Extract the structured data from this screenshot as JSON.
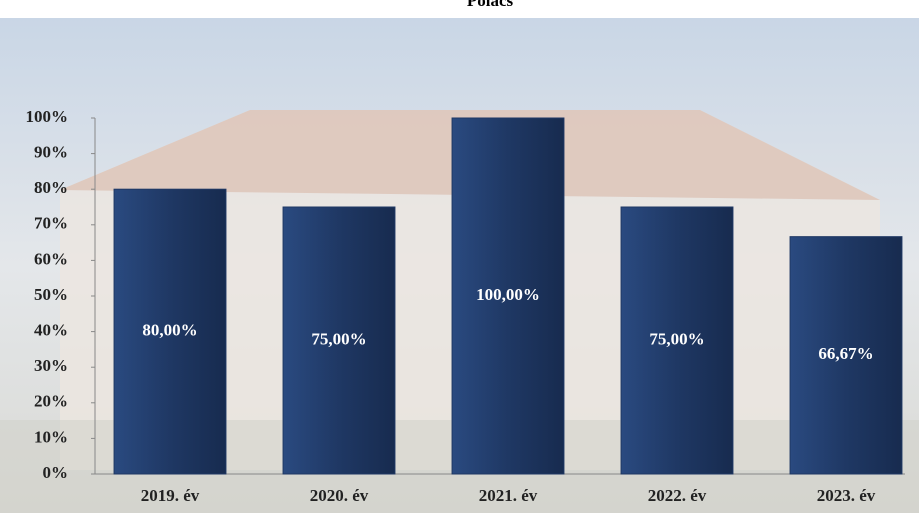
{
  "chart_data": {
    "type": "bar",
    "title": "Polács",
    "categories": [
      "2019. év",
      "2020. év",
      "2021. év",
      "2022. év",
      "2023. év"
    ],
    "values": [
      80,
      75,
      100,
      75,
      66.67
    ],
    "value_labels": [
      "80,00%",
      "75,00%",
      "100,00%",
      "75,00%",
      "66,67%"
    ],
    "color": "#1f3864",
    "ylim": [
      0,
      100
    ],
    "yticks": [
      {
        "value": 0,
        "label": "0%"
      },
      {
        "value": 10,
        "label": "10%"
      },
      {
        "value": 20,
        "label": "20%"
      },
      {
        "value": 30,
        "label": "30%"
      },
      {
        "value": 40,
        "label": "40%"
      },
      {
        "value": 50,
        "label": "50%"
      },
      {
        "value": 60,
        "label": "60%"
      },
      {
        "value": 70,
        "label": "70%"
      },
      {
        "value": 80,
        "label": "80%"
      },
      {
        "value": 90,
        "label": "90%"
      },
      {
        "value": 100,
        "label": "100%"
      }
    ],
    "grid": false
  }
}
